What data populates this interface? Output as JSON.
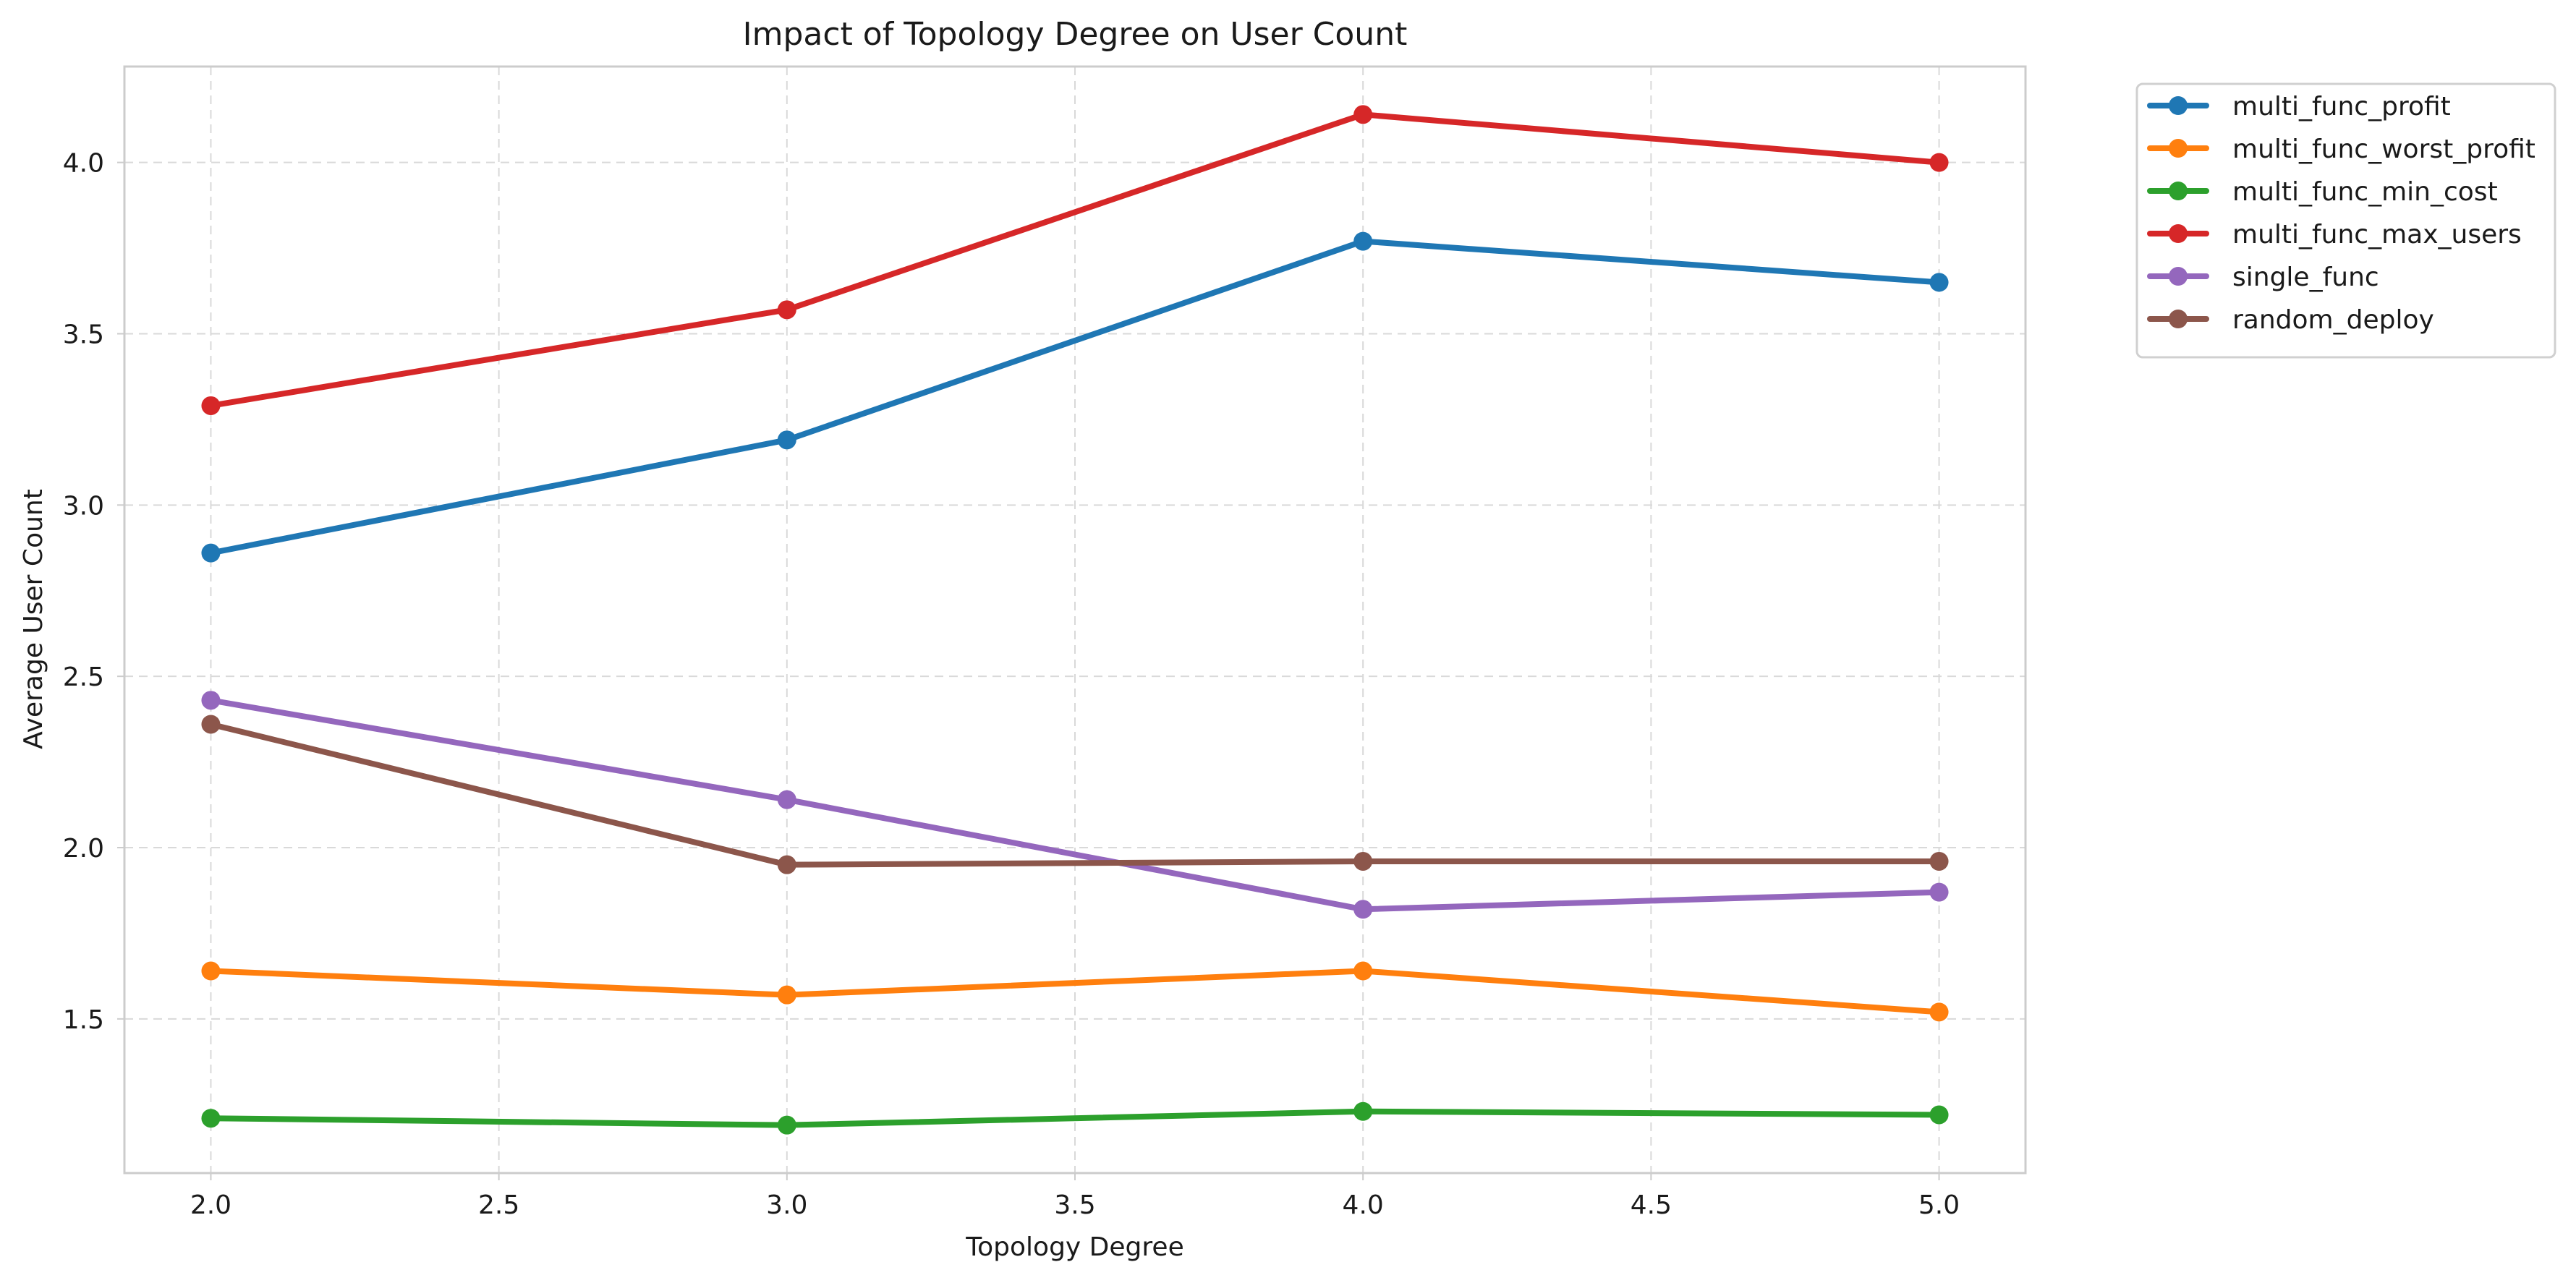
{
  "chart_data": {
    "type": "line",
    "title": "Impact of Topology Degree on User Count",
    "xlabel": "Topology Degree",
    "ylabel": "Average User Count",
    "x": [
      2.0,
      3.0,
      4.0,
      5.0
    ],
    "xlim": [
      1.85,
      5.15
    ],
    "ylim": [
      1.05,
      4.28
    ],
    "xticks": [
      2.0,
      2.5,
      3.0,
      3.5,
      4.0,
      4.5,
      5.0
    ],
    "xtick_labels": [
      "2.0",
      "2.5",
      "3.0",
      "3.5",
      "4.0",
      "4.5",
      "5.0"
    ],
    "yticks": [
      1.5,
      2.0,
      2.5,
      3.0,
      3.5,
      4.0
    ],
    "ytick_labels": [
      "1.5",
      "2.0",
      "2.5",
      "3.0",
      "3.5",
      "4.0"
    ],
    "grid": true,
    "legend_position": "outside-top-right",
    "series": [
      {
        "name": "multi_func_profit",
        "color": "#1f77b4",
        "values": [
          2.86,
          3.19,
          3.77,
          3.65
        ]
      },
      {
        "name": "multi_func_worst_profit",
        "color": "#ff7f0e",
        "values": [
          1.64,
          1.57,
          1.64,
          1.52
        ]
      },
      {
        "name": "multi_func_min_cost",
        "color": "#2ca02c",
        "values": [
          1.21,
          1.19,
          1.23,
          1.22
        ]
      },
      {
        "name": "multi_func_max_users",
        "color": "#d62728",
        "values": [
          3.29,
          3.57,
          4.14,
          4.0
        ]
      },
      {
        "name": "single_func",
        "color": "#9467bd",
        "values": [
          2.43,
          2.14,
          1.82,
          1.87
        ]
      },
      {
        "name": "random_deploy",
        "color": "#8c564b",
        "values": [
          2.36,
          1.95,
          1.96,
          1.96
        ]
      }
    ]
  }
}
